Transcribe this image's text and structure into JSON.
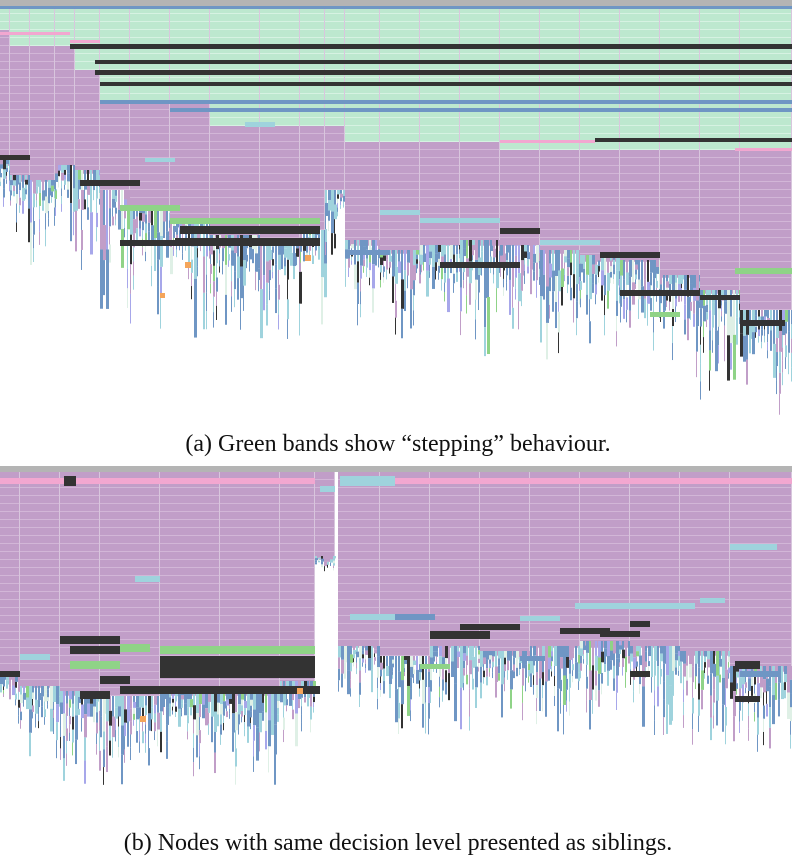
{
  "figure": {
    "panels": [
      {
        "id": "a",
        "caption": "(a) Green bands show “stepping” behaviour."
      },
      {
        "id": "b",
        "caption": "(b) Nodes with same decision level presented as siblings."
      }
    ]
  },
  "colors": {
    "purple": "#c19ec8",
    "purple_line": "#d2b6d7",
    "mint": "#bde8cf",
    "dark": "#333333",
    "steel": "#6f96c4",
    "pink": "#f2a7d0",
    "cyan": "#9fd3dd",
    "green": "#8fd387",
    "lav": "#a7a7ea",
    "orange": "#f5a55a",
    "gray": "#b4b4b4",
    "pale": "#dff0e6"
  }
}
